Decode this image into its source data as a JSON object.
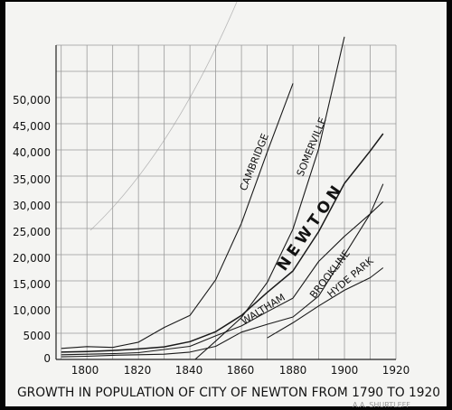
{
  "chart_data": {
    "type": "line",
    "title": "GROWTH IN POPULATION OF CITY OF NEWTON FROM 1790 TO 1920",
    "xlabel": "",
    "ylabel": "",
    "xlim": [
      1788,
      1920
    ],
    "ylim": [
      0,
      60000
    ],
    "grid": true,
    "x_ticks": [
      "1800",
      "1820",
      "1840",
      "1860",
      "1880",
      "1900",
      "1920"
    ],
    "y_ticks": [
      "0",
      "5000",
      "10,000",
      "15,000",
      "20,000",
      "25,000",
      "30,000",
      "35,000",
      "40,000",
      "45,000",
      "50,000"
    ],
    "series": [
      {
        "name": "CAMBRIDGE",
        "x": [
          1790,
          1800,
          1810,
          1820,
          1830,
          1840,
          1850,
          1860,
          1870,
          1880
        ],
        "y": [
          2100,
          2450,
          2300,
          3300,
          6100,
          8400,
          15200,
          26000,
          39600,
          52700
        ]
      },
      {
        "name": "SOMERVILLE",
        "x": [
          1842,
          1850,
          1860,
          1870,
          1880,
          1890,
          1900
        ],
        "y": [
          0,
          3500,
          8000,
          14700,
          24900,
          40200,
          61600
        ]
      },
      {
        "name": "NEWTON",
        "x": [
          1790,
          1800,
          1810,
          1820,
          1830,
          1840,
          1850,
          1860,
          1870,
          1880,
          1890,
          1900,
          1910,
          1915
        ],
        "y": [
          1400,
          1500,
          1700,
          2000,
          2400,
          3400,
          5300,
          8400,
          12800,
          16900,
          24400,
          33600,
          39800,
          43100
        ]
      },
      {
        "name": "WALTHAM",
        "x": [
          1790,
          1800,
          1810,
          1820,
          1830,
          1840,
          1850,
          1860,
          1870,
          1880,
          1890,
          1900,
          1910,
          1915
        ],
        "y": [
          900,
          1000,
          1100,
          1300,
          1900,
          2500,
          4500,
          6400,
          9100,
          11700,
          18700,
          23500,
          27800,
          30100
        ]
      },
      {
        "name": "BROOKLINE",
        "x": [
          1790,
          1800,
          1810,
          1820,
          1830,
          1840,
          1850,
          1860,
          1870,
          1880,
          1890,
          1900,
          1910,
          1915
        ],
        "y": [
          500,
          600,
          800,
          900,
          1000,
          1400,
          2500,
          5200,
          6700,
          8100,
          12100,
          19900,
          27800,
          33500
        ]
      },
      {
        "name": "HYDE PARK",
        "x": [
          1870,
          1880,
          1890,
          1900,
          1910,
          1915
        ],
        "y": [
          4100,
          7000,
          10200,
          13200,
          15600,
          17500
        ]
      }
    ],
    "labels": {
      "cambridge": "CAMBRIDGE",
      "somerville": "SOMERVILLE",
      "newton": "NEWTON",
      "waltham": "WALTHAM",
      "brookline": "BROOKLINE",
      "hyde_park": "HYDE PARK"
    },
    "credit": "A.A. SHURTLEFF"
  }
}
